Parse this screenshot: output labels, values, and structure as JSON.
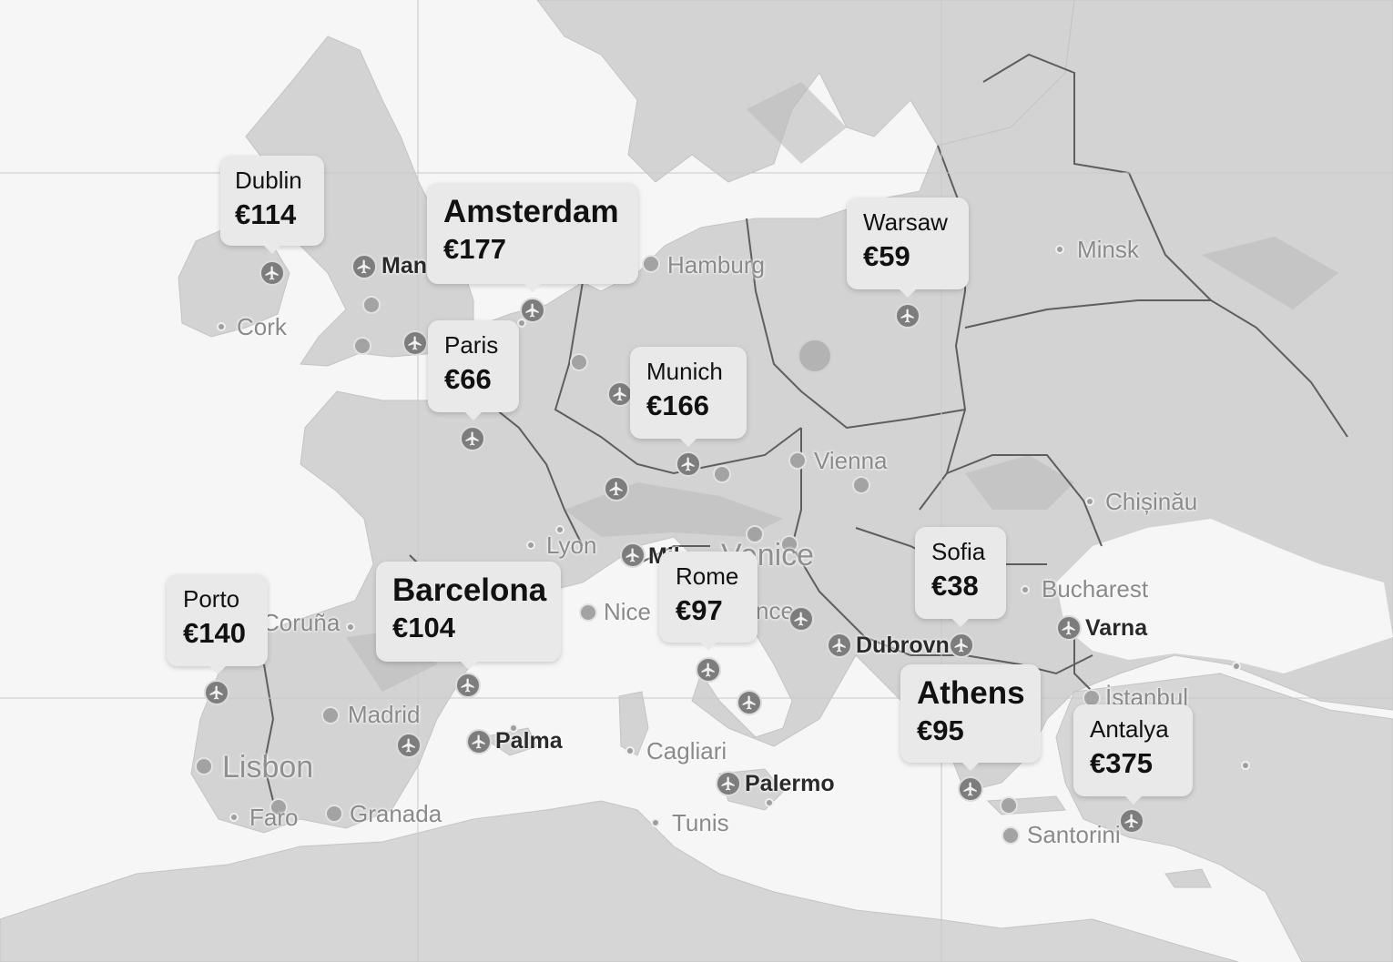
{
  "map": {
    "destinations": [
      {
        "id": "dublin",
        "city": "Dublin",
        "price": "€114"
      },
      {
        "id": "amsterdam",
        "city": "Amsterdam",
        "price": "€177"
      },
      {
        "id": "warsaw",
        "city": "Warsaw",
        "price": "€59"
      },
      {
        "id": "paris",
        "city": "Paris",
        "price": "€66"
      },
      {
        "id": "munich",
        "city": "Munich",
        "price": "€166"
      },
      {
        "id": "porto",
        "city": "Porto",
        "price": "€140"
      },
      {
        "id": "barcelona",
        "city": "Barcelona",
        "price": "€104"
      },
      {
        "id": "rome",
        "city": "Rome",
        "price": "€97"
      },
      {
        "id": "sofia",
        "city": "Sofia",
        "price": "€38"
      },
      {
        "id": "athens",
        "city": "Athens",
        "price": "€95"
      },
      {
        "id": "antalya",
        "city": "Antalya",
        "price": "€375"
      }
    ],
    "place_labels": {
      "cork": "Cork",
      "manchester": "Man",
      "hamburg": "Hamburg",
      "minsk": "Minsk",
      "vienna": "Vienna",
      "chisinau": "Chișinău",
      "lyon": "Lyon",
      "milan": "Mil",
      "venice": "Venice",
      "coruna": "Coruña",
      "nice": "Nice",
      "florence": "nce",
      "bucharest": "Bucharest",
      "varna": "Varna",
      "dubrovnik": "Dubrovn",
      "istanbul": "İstanbul",
      "madrid": "Madrid",
      "palma": "Palma",
      "cagliari": "Cagliari",
      "lisbon": "Lisbon",
      "palermo": "Palermo",
      "faro": "Faro",
      "granada": "Granada",
      "tunis": "Tunis",
      "santorini": "Santorini"
    },
    "icons": {
      "airport": "airplane-icon",
      "place": "place-dot"
    }
  }
}
